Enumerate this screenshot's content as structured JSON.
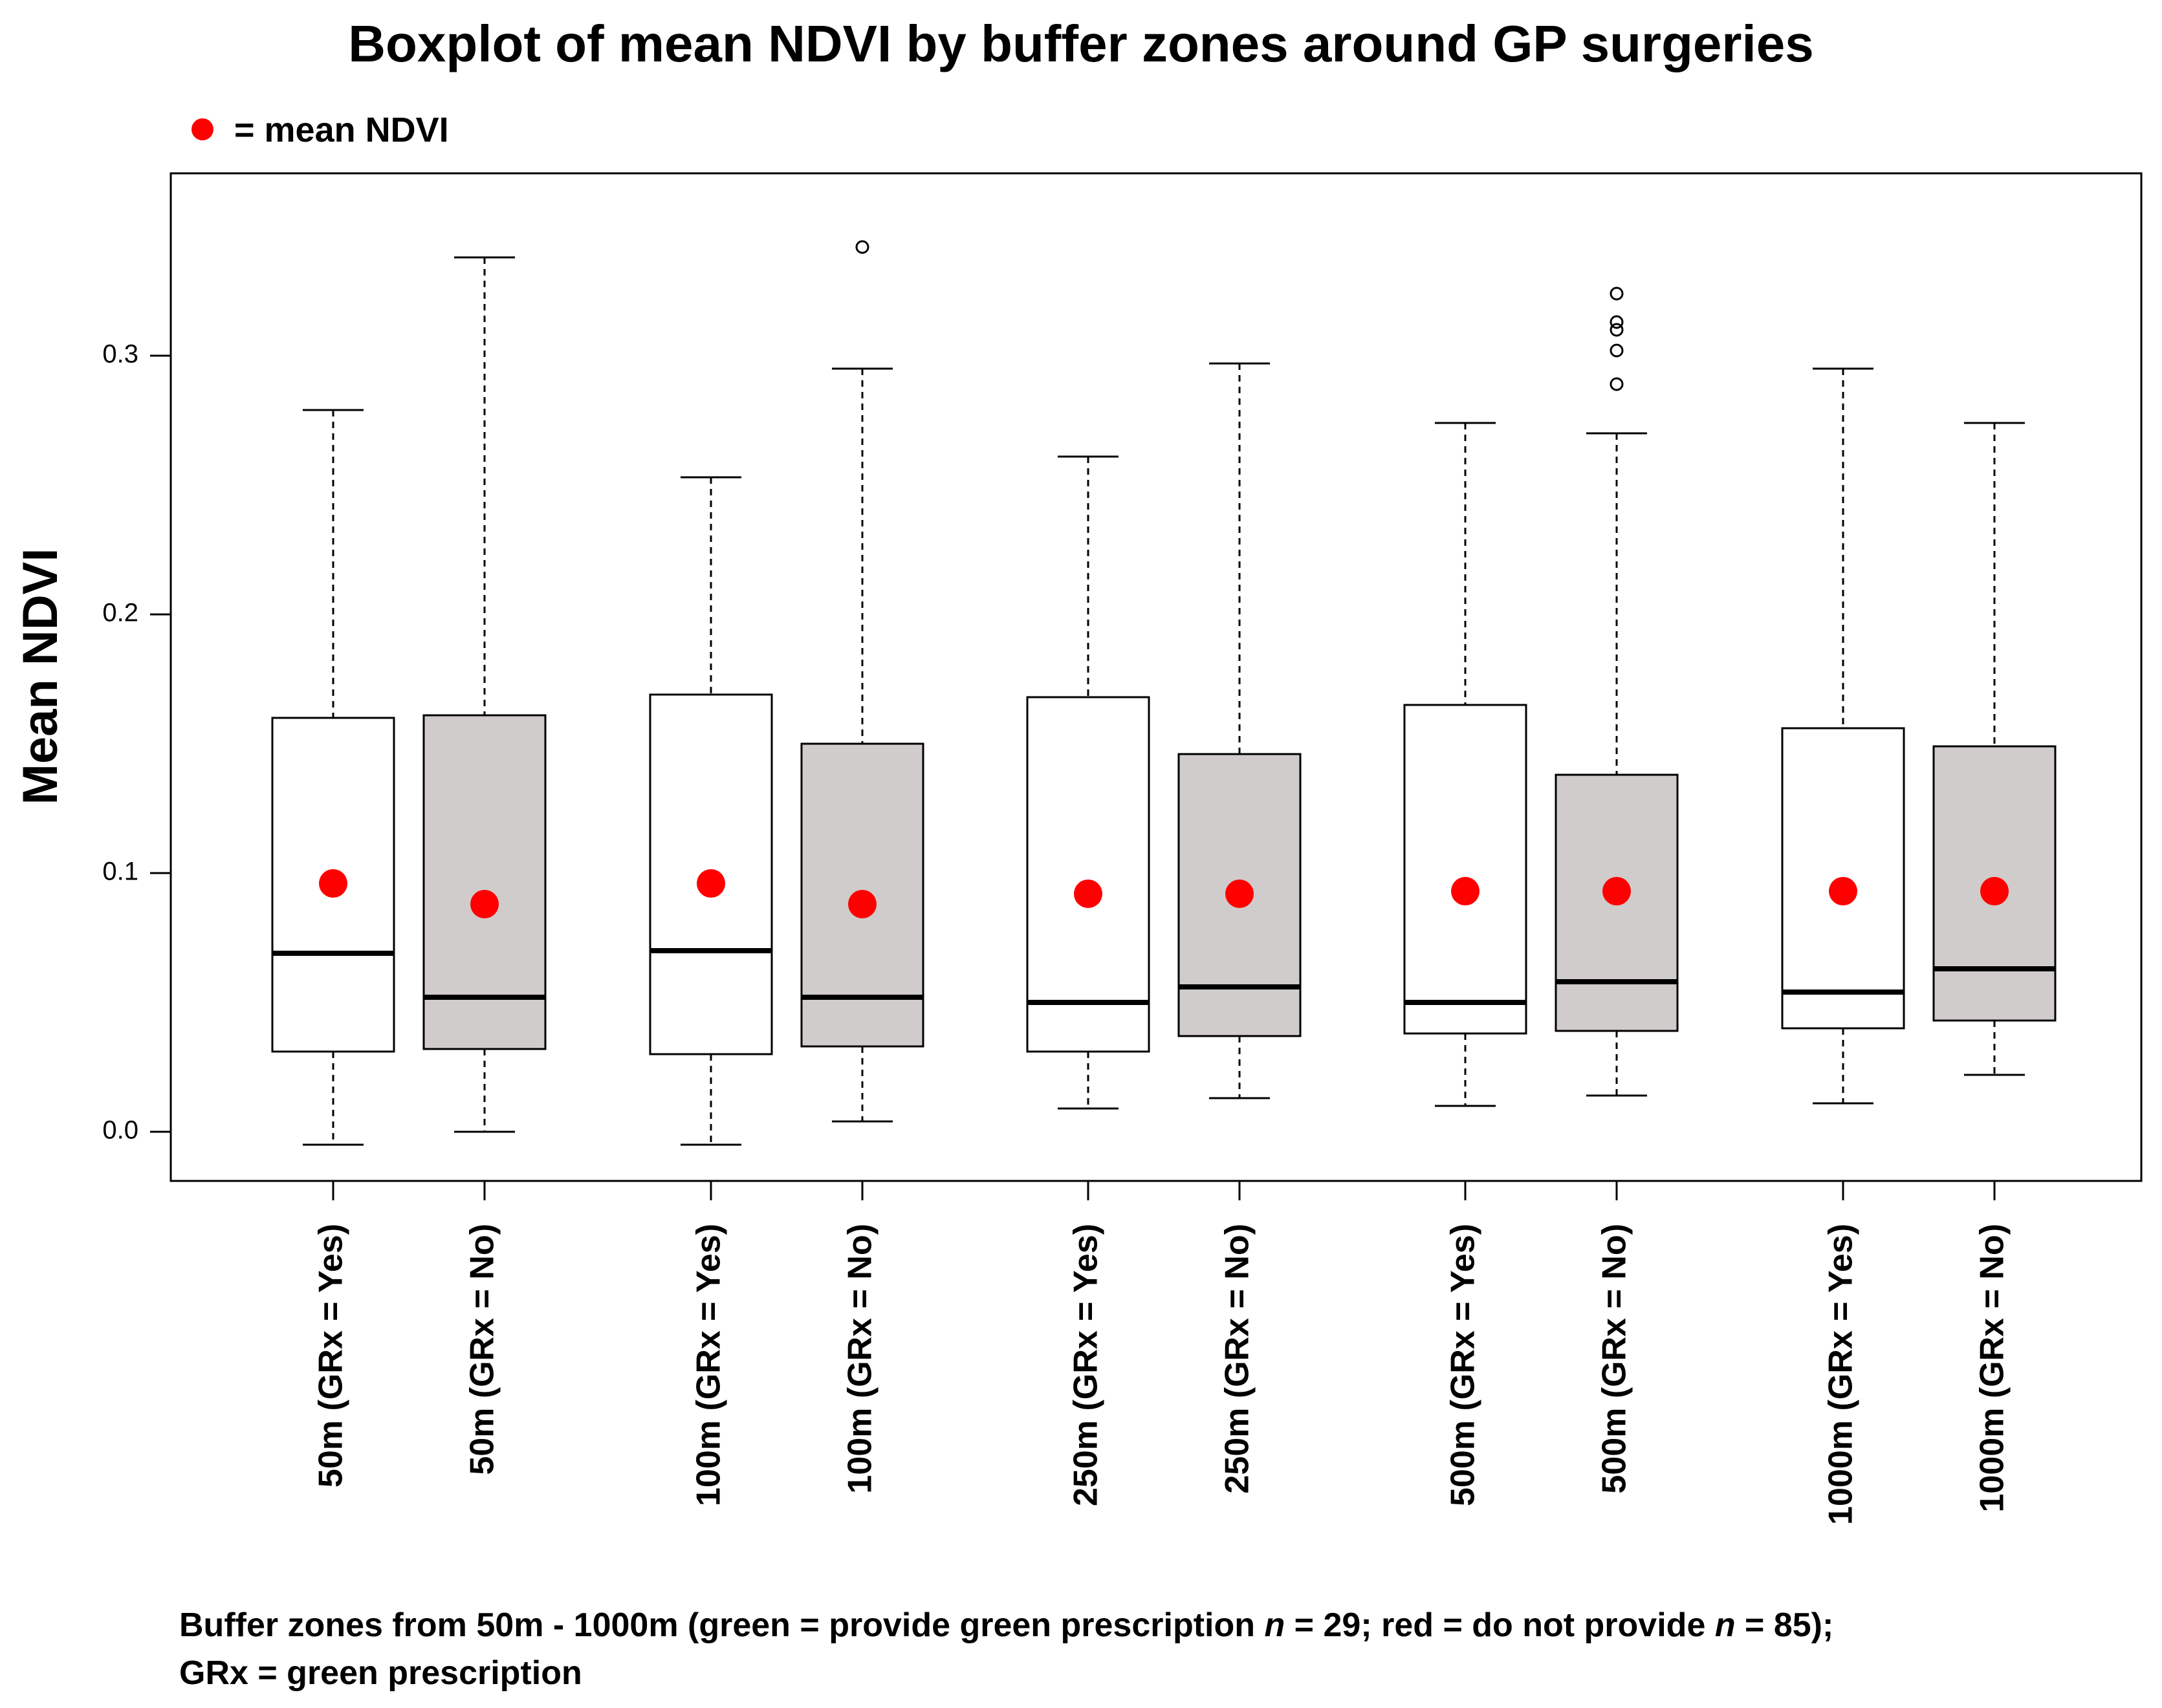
{
  "chart_data": {
    "type": "boxplot",
    "title": "Boxplot of mean NDVI by buffer zones around GP surgeries",
    "legend": {
      "label": "= mean NDVI",
      "marker_color": "#ff0000",
      "placement": "top-left"
    },
    "ylabel": "Mean NDVI",
    "xlabel": "",
    "ylim": [
      -0.02,
      0.37
    ],
    "yticks": [
      0.0,
      0.1,
      0.2,
      0.3
    ],
    "ytick_labels": [
      "0.0",
      "0.1",
      "0.2",
      "0.3"
    ],
    "grid": false,
    "colors": {
      "yes_fill": "#ffffff",
      "no_fill": "#d0cccb",
      "mean_marker": "#ff0000"
    },
    "categories": [
      "50m (GRx = Yes)",
      "50m (GRx = No)",
      "100m (GRx = Yes)",
      "100m (GRx = No)",
      "250m (GRx = Yes)",
      "250m (GRx = No)",
      "500m (GRx = Yes)",
      "500m (GRx = No)",
      "1000m (GRx = Yes)",
      "1000m (GRx = No)"
    ],
    "boxes": [
      {
        "group": "Yes",
        "whisker_low": -0.005,
        "q1": 0.031,
        "median": 0.069,
        "q3": 0.16,
        "whisker_high": 0.279,
        "mean": 0.096,
        "outliers": []
      },
      {
        "group": "No",
        "whisker_low": 0.0,
        "q1": 0.032,
        "median": 0.052,
        "q3": 0.161,
        "whisker_high": 0.338,
        "mean": 0.088,
        "outliers": []
      },
      {
        "group": "Yes",
        "whisker_low": -0.005,
        "q1": 0.03,
        "median": 0.07,
        "q3": 0.169,
        "whisker_high": 0.253,
        "mean": 0.096,
        "outliers": []
      },
      {
        "group": "No",
        "whisker_low": 0.004,
        "q1": 0.033,
        "median": 0.052,
        "q3": 0.15,
        "whisker_high": 0.295,
        "mean": 0.088,
        "outliers": [
          0.342
        ]
      },
      {
        "group": "Yes",
        "whisker_low": 0.009,
        "q1": 0.031,
        "median": 0.05,
        "q3": 0.168,
        "whisker_high": 0.261,
        "mean": 0.092,
        "outliers": []
      },
      {
        "group": "No",
        "whisker_low": 0.013,
        "q1": 0.037,
        "median": 0.056,
        "q3": 0.146,
        "whisker_high": 0.297,
        "mean": 0.092,
        "outliers": []
      },
      {
        "group": "Yes",
        "whisker_low": 0.01,
        "q1": 0.038,
        "median": 0.05,
        "q3": 0.165,
        "whisker_high": 0.274,
        "mean": 0.093,
        "outliers": []
      },
      {
        "group": "No",
        "whisker_low": 0.014,
        "q1": 0.039,
        "median": 0.058,
        "q3": 0.138,
        "whisker_high": 0.27,
        "mean": 0.093,
        "outliers": [
          0.289,
          0.302,
          0.31,
          0.313,
          0.324
        ]
      },
      {
        "group": "Yes",
        "whisker_low": 0.011,
        "q1": 0.04,
        "median": 0.054,
        "q3": 0.156,
        "whisker_high": 0.295,
        "mean": 0.093,
        "outliers": []
      },
      {
        "group": "No",
        "whisker_low": 0.022,
        "q1": 0.043,
        "median": 0.063,
        "q3": 0.149,
        "whisker_high": 0.274,
        "mean": 0.093,
        "outliers": []
      }
    ],
    "caption_line1_parts": [
      "Buffer zones from 50m - 1000m (green = provide green prescription ",
      "n",
      " = 29; red = do not provide ",
      "n",
      " = 85);"
    ],
    "caption_line2": "GRx = green prescription"
  }
}
